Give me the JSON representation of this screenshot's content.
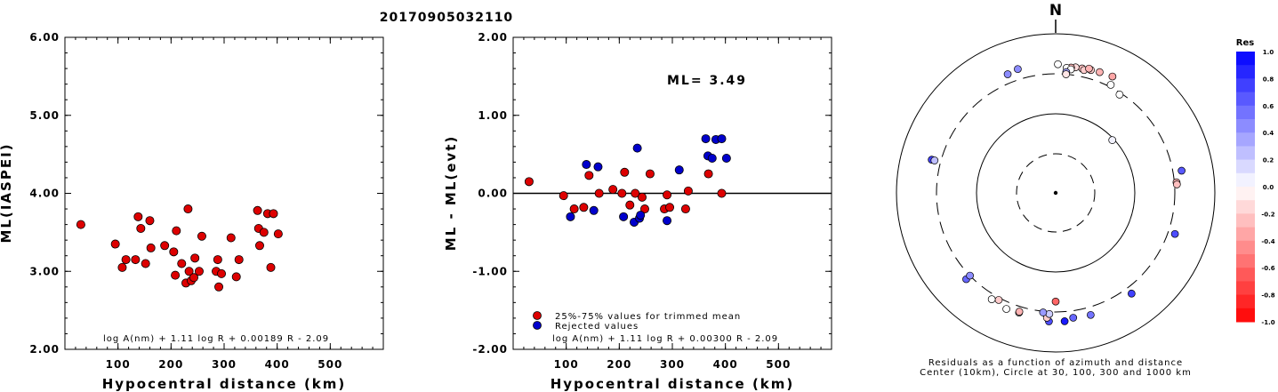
{
  "figure": {
    "title": "20170905032110"
  },
  "chart_data": [
    {
      "type": "scatter",
      "ylabel": "ML(IASPEI)",
      "xlabel": "Hypocentral distance (km)",
      "xlim": [
        0,
        600
      ],
      "ylim": [
        2.0,
        6.0
      ],
      "x_ticks": [
        {
          "value": 100,
          "label": "100"
        },
        {
          "value": 200,
          "label": "200"
        },
        {
          "value": 300,
          "label": "300"
        },
        {
          "value": 400,
          "label": "400"
        },
        {
          "value": 500,
          "label": "500"
        }
      ],
      "y_ticks": [
        {
          "value": 2.0,
          "label": "2.00"
        },
        {
          "value": 3.0,
          "label": "3.00"
        },
        {
          "value": 4.0,
          "label": "4.00"
        },
        {
          "value": 5.0,
          "label": "5.00"
        },
        {
          "value": 6.0,
          "label": "6.00"
        }
      ],
      "formula": "log A(nm) + 1.11 log R + 0.00189 R - 2.09",
      "series": [
        {
          "color": "#dd0000",
          "points": [
            [
              30,
              3.6
            ],
            [
              95,
              3.35
            ],
            [
              108,
              3.05
            ],
            [
              115,
              3.15
            ],
            [
              133,
              3.15
            ],
            [
              138,
              3.7
            ],
            [
              143,
              3.55
            ],
            [
              152,
              3.1
            ],
            [
              160,
              3.65
            ],
            [
              162,
              3.3
            ],
            [
              188,
              3.33
            ],
            [
              205,
              3.25
            ],
            [
              208,
              2.95
            ],
            [
              210,
              3.52
            ],
            [
              220,
              3.1
            ],
            [
              228,
              2.85
            ],
            [
              232,
              3.8
            ],
            [
              234,
              3.0
            ],
            [
              238,
              2.88
            ],
            [
              243,
              2.92
            ],
            [
              245,
              3.17
            ],
            [
              253,
              3.0
            ],
            [
              258,
              3.45
            ],
            [
              285,
              3.0
            ],
            [
              288,
              3.15
            ],
            [
              290,
              2.8
            ],
            [
              295,
              2.97
            ],
            [
              313,
              3.43
            ],
            [
              323,
              2.93
            ],
            [
              328,
              3.15
            ],
            [
              363,
              3.78
            ],
            [
              365,
              3.55
            ],
            [
              367,
              3.33
            ],
            [
              375,
              3.5
            ],
            [
              382,
              3.74
            ],
            [
              388,
              3.05
            ],
            [
              393,
              3.74
            ],
            [
              402,
              3.48
            ]
          ]
        }
      ]
    },
    {
      "type": "scatter",
      "ylabel": "ML - ML(evt)",
      "xlabel": "Hypocentral distance (km)",
      "xlim": [
        0,
        600
      ],
      "ylim": [
        -2.0,
        2.0
      ],
      "x_ticks": [
        {
          "value": 100,
          "label": "100"
        },
        {
          "value": 200,
          "label": "200"
        },
        {
          "value": 300,
          "label": "300"
        },
        {
          "value": 400,
          "label": "400"
        },
        {
          "value": 500,
          "label": "500"
        }
      ],
      "y_ticks": [
        {
          "value": -2.0,
          "label": "-2.00"
        },
        {
          "value": -1.0,
          "label": "-1.00"
        },
        {
          "value": 0.0,
          "label": "0.00"
        },
        {
          "value": 1.0,
          "label": "1.00"
        },
        {
          "value": 2.0,
          "label": "2.00"
        }
      ],
      "zero_line": 0.0,
      "ml_label": "ML= 3.49",
      "formula": "log A(nm) + 1.11 log R + 0.00300 R - 2.09",
      "legend": [
        {
          "label": "25%-75% values for trimmed mean",
          "color": "#dd0000"
        },
        {
          "label": "Rejected values",
          "color": "#0000cc"
        }
      ],
      "series": [
        {
          "name": "25%-75% values for trimmed mean",
          "color": "#dd0000",
          "points": [
            [
              30,
              0.15
            ],
            [
              95,
              -0.03
            ],
            [
              115,
              -0.2
            ],
            [
              133,
              -0.18
            ],
            [
              143,
              0.23
            ],
            [
              162,
              0.0
            ],
            [
              188,
              0.05
            ],
            [
              205,
              0.0
            ],
            [
              210,
              0.27
            ],
            [
              220,
              -0.15
            ],
            [
              230,
              0.0
            ],
            [
              243,
              -0.05
            ],
            [
              248,
              -0.2
            ],
            [
              258,
              0.25
            ],
            [
              285,
              -0.2
            ],
            [
              290,
              -0.02
            ],
            [
              295,
              -0.18
            ],
            [
              325,
              -0.2
            ],
            [
              330,
              0.03
            ],
            [
              368,
              0.25
            ],
            [
              393,
              0.0
            ]
          ]
        },
        {
          "name": "Rejected values",
          "color": "#0000cc",
          "points": [
            [
              108,
              -0.3
            ],
            [
              138,
              0.37
            ],
            [
              152,
              -0.22
            ],
            [
              160,
              0.34
            ],
            [
              208,
              -0.3
            ],
            [
              228,
              -0.37
            ],
            [
              234,
              0.58
            ],
            [
              238,
              -0.32
            ],
            [
              240,
              -0.28
            ],
            [
              290,
              -0.35
            ],
            [
              313,
              0.3
            ],
            [
              363,
              0.7
            ],
            [
              367,
              0.48
            ],
            [
              375,
              0.45
            ],
            [
              382,
              0.69
            ],
            [
              393,
              0.7
            ],
            [
              402,
              0.45
            ]
          ]
        }
      ]
    },
    {
      "type": "scatter",
      "subtype": "polar-residual-map",
      "north_label": "N",
      "caption_line1": "Residuals as a function of azimuth and distance",
      "caption_line2": "Center (10km), Circle at 30, 100, 300 and 1000 km",
      "colorbar": {
        "title": "Res",
        "range": [
          -1.0,
          1.0
        ],
        "ticks": [
          "1.0",
          "0.8",
          "0.6",
          "0.4",
          "0.2",
          "0.0",
          "-0.2",
          "-0.4",
          "-0.6",
          "-0.8",
          "-1.0"
        ]
      },
      "stations": [
        {
          "az": 16,
          "dist": 390,
          "res": -0.2
        },
        {
          "az": 12,
          "dist": 383,
          "res": -0.25
        },
        {
          "az": 13,
          "dist": 370,
          "res": -0.2
        },
        {
          "az": 9,
          "dist": 382,
          "res": -0.15
        },
        {
          "az": 7,
          "dist": 372,
          "res": -0.3
        },
        {
          "az": 5,
          "dist": 363,
          "res": 0.0
        },
        {
          "az": 7,
          "dist": 352,
          "res": 0.0
        },
        {
          "az": 5,
          "dist": 320,
          "res": 0.35
        },
        {
          "az": 5,
          "dist": 300,
          "res": -0.1
        },
        {
          "az": 1,
          "dist": 400,
          "res": 0.0
        },
        {
          "az": -17,
          "dist": 410,
          "res": 0.45
        },
        {
          "az": 20,
          "dist": 398,
          "res": -0.3
        },
        {
          "az": 15,
          "dist": 400,
          "res": -0.3
        },
        {
          "az": 26,
          "dist": 410,
          "res": -0.35
        },
        {
          "az": 27,
          "dist": 320,
          "res": 0.0
        },
        {
          "az": 33,
          "dist": 285,
          "res": 0.0
        },
        {
          "az": 85,
          "dist": 320,
          "res": -0.3
        },
        {
          "az": 86,
          "dist": 322,
          "res": -0.25
        },
        {
          "az": 80,
          "dist": 390,
          "res": 0.65
        },
        {
          "az": 109,
          "dist": 370,
          "res": 0.7
        },
        {
          "az": 143,
          "dist": 370,
          "res": 0.75
        },
        {
          "az": 164,
          "dist": 380,
          "res": 0.55
        },
        {
          "az": 172,
          "dist": 370,
          "res": 0.6
        },
        {
          "az": 176,
          "dist": 400,
          "res": 0.9
        },
        {
          "az": 183,
          "dist": 400,
          "res": 0.7
        },
        {
          "az": 184,
          "dist": 360,
          "res": -0.2
        },
        {
          "az": 183,
          "dist": 320,
          "res": 0.2
        },
        {
          "az": 186,
          "dist": 310,
          "res": 0.4
        },
        {
          "az": 197,
          "dist": 360,
          "res": 0.0
        },
        {
          "az": 197,
          "dist": 350,
          "res": -0.3
        },
        {
          "az": 208,
          "dist": 320,
          "res": -0.2
        },
        {
          "az": 211,
          "dist": 348,
          "res": 0.0
        },
        {
          "az": 203,
          "dist": 370,
          "res": 0.0
        },
        {
          "az": 180,
          "dist": 225,
          "res": -0.6
        },
        {
          "az": 226,
          "dist": 350,
          "res": 0.6
        },
        {
          "az": 226,
          "dist": 300,
          "res": 0.45
        },
        {
          "az": 285,
          "dist": 395,
          "res": 0.75
        },
        {
          "az": 285,
          "dist": 362,
          "res": 0.25
        },
        {
          "az": 47,
          "dist": 95,
          "res": 0.05
        },
        {
          "az": -22,
          "dist": 392,
          "res": 0.45
        }
      ]
    }
  ]
}
